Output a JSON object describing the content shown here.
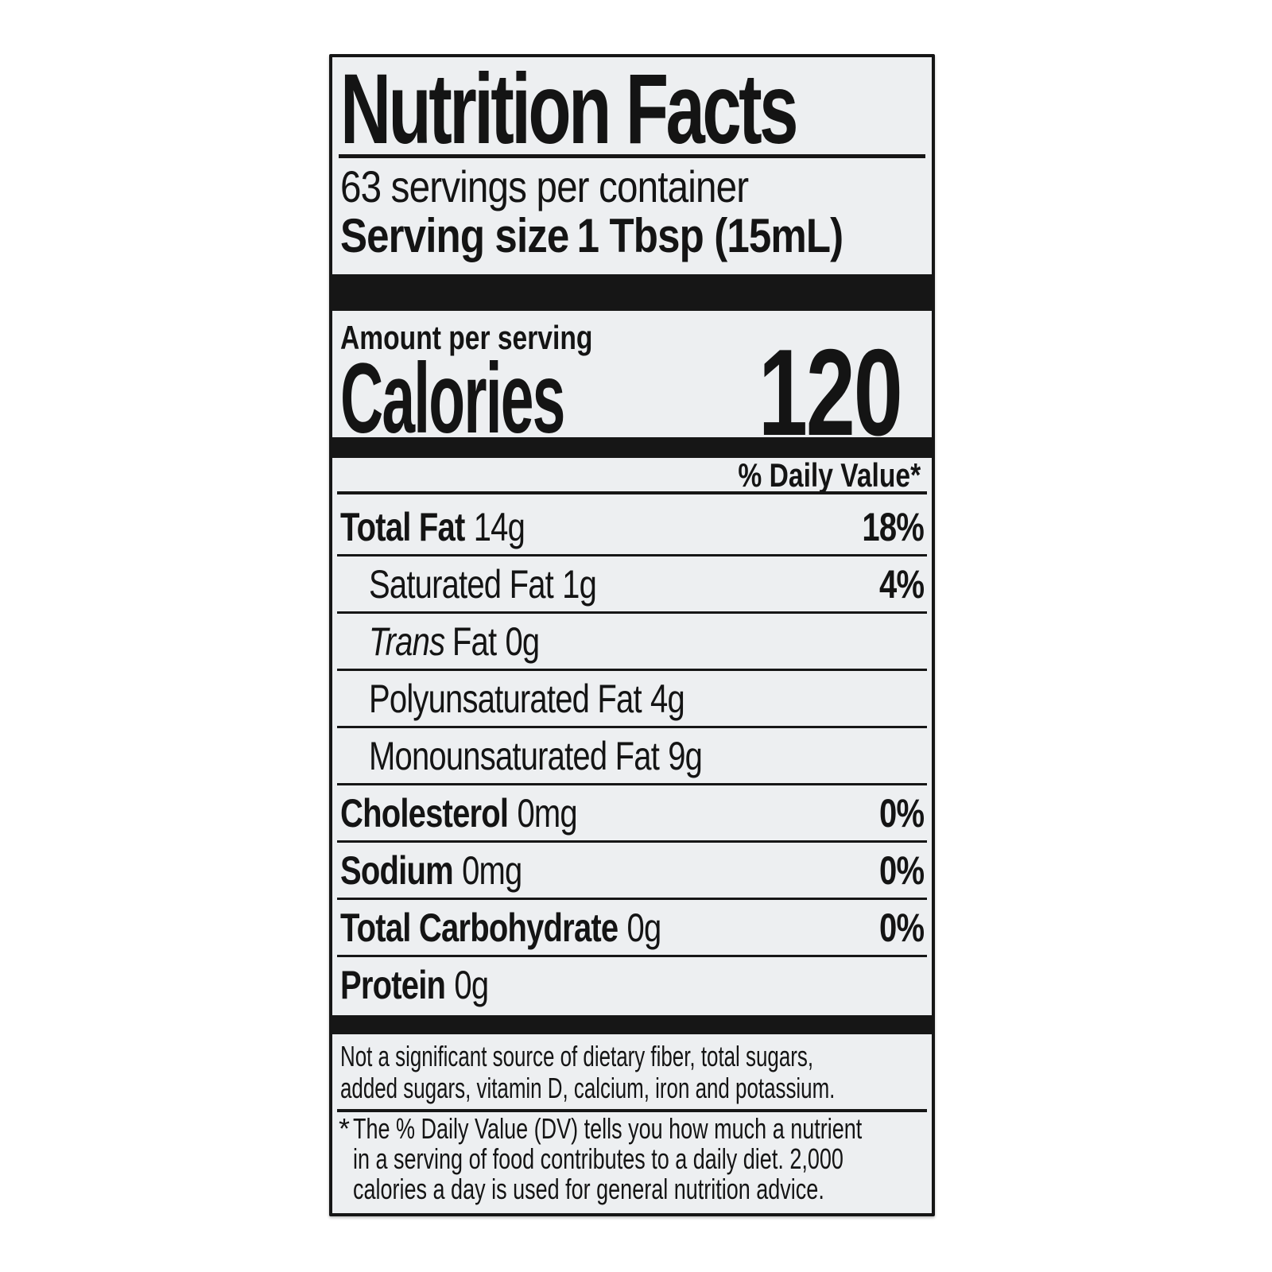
{
  "label": {
    "title": "Nutrition Facts",
    "servings_per_container": "63 servings per container",
    "serving_size_label": "Serving size",
    "serving_size_value": "1 Tbsp (15mL)",
    "amount_per_serving": "Amount per serving",
    "calories": {
      "label": "Calories",
      "value": "120"
    },
    "daily_value_header": "% Daily Value*",
    "rows": [
      {
        "name": "Total Fat",
        "amount": "14g",
        "dv": "18%"
      },
      {
        "name": "Saturated Fat",
        "amount": "1g",
        "dv": "4%"
      },
      {
        "name_italic": "Trans",
        "name": "Fat",
        "amount": "0g",
        "dv": ""
      },
      {
        "name": "Polyunsaturated Fat",
        "amount": "4g",
        "dv": ""
      },
      {
        "name": "Monounsaturated Fat",
        "amount": "9g",
        "dv": ""
      },
      {
        "name": "Cholesterol",
        "amount": "0mg",
        "dv": "0%"
      },
      {
        "name": "Sodium",
        "amount": "0mg",
        "dv": "0%"
      },
      {
        "name": "Total Carbohydrate",
        "amount": "0g",
        "dv": "0%"
      },
      {
        "name": "Protein",
        "amount": "0g",
        "dv": ""
      }
    ],
    "not_significant_lines": [
      "Not a significant source of dietary fiber, total sugars,",
      "added sugars, vitamin D, calcium, iron and potassium."
    ],
    "footnote_marker": "*",
    "footnote_lines": [
      "The % Daily Value (DV) tells you how much a nutrient",
      "in a serving of food contributes to a daily diet. 2,000",
      "calories a day is used for general nutrition advice."
    ],
    "colors": {
      "label_background": "#edeff1",
      "text": "#141414",
      "rule": "#161616",
      "page_background": "#ffffff"
    }
  }
}
